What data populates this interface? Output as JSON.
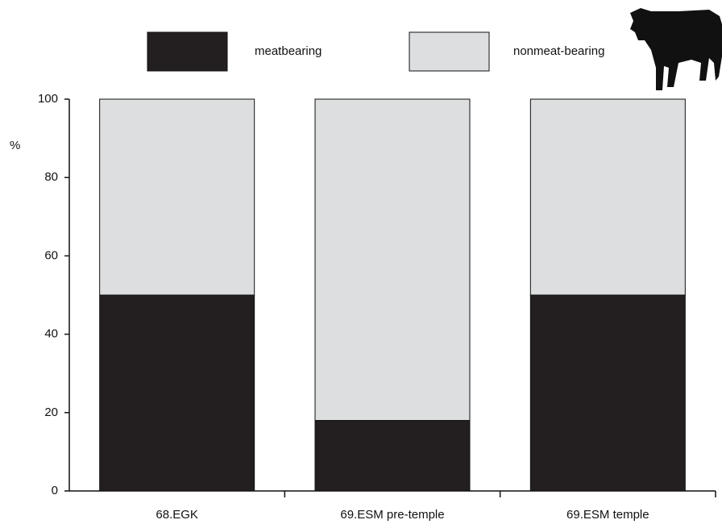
{
  "chart_data": {
    "type": "stacked_bar",
    "y_label": "%",
    "categories": [
      "68.EGK",
      "69.ESM pre-temple",
      "69.ESM temple"
    ],
    "series": [
      {
        "name": "meatbearing",
        "color": "#231f20",
        "values": [
          50,
          18,
          50
        ]
      },
      {
        "name": "nonmeat-bearing",
        "color": "#dcdee0",
        "values": [
          50,
          82,
          50
        ]
      }
    ],
    "ylim": [
      0,
      100
    ],
    "yticks": [
      0,
      20,
      40,
      60,
      80,
      100
    ],
    "grid": false
  }
}
